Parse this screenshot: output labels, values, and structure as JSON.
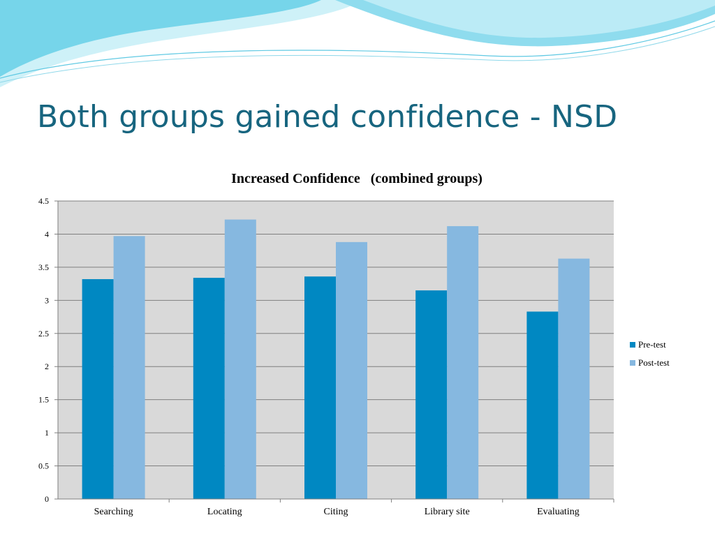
{
  "slide": {
    "title": "Both groups gained confidence - NSD"
  },
  "colors": {
    "title": "#17657f",
    "plot_background": "#d9d9d9",
    "gridline": "#7f7f7f",
    "wave_dark": "#29b3d6",
    "wave_light": "#a6e6f3"
  },
  "chart_data": {
    "type": "bar",
    "title": "Increased Confidence   (combined groups)",
    "xlabel": "",
    "ylabel": "",
    "categories": [
      "Searching",
      "Locating",
      "Citing",
      "Library site",
      "Evaluating"
    ],
    "series": [
      {
        "name": "Pre-test",
        "color": "#0088c2",
        "values": [
          3.32,
          3.34,
          3.36,
          3.15,
          2.83
        ]
      },
      {
        "name": "Post-test",
        "color": "#86b8e0",
        "values": [
          3.97,
          4.22,
          3.88,
          4.12,
          3.63
        ]
      }
    ],
    "ylim": [
      0,
      4.5
    ],
    "yticks": [
      "0",
      "0.5",
      "1",
      "1.5",
      "2",
      "2.5",
      "3",
      "3.5",
      "4",
      "4.5"
    ],
    "grid": true,
    "legend_position": "right"
  }
}
